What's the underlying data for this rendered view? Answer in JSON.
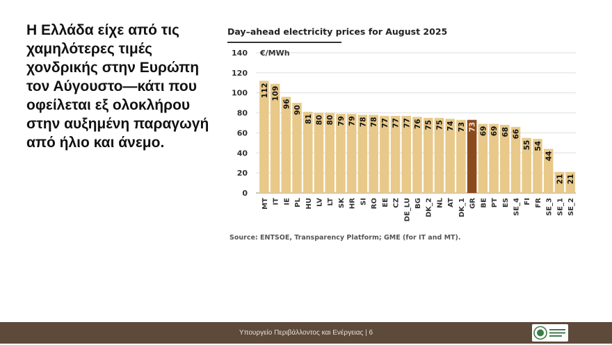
{
  "slide": {
    "headline": "Η Ελλάδα είχε από τις χαμηλότερες τιμές χονδρικής στην Ευρώπη τον Αύγουστο—κάτι που οφείλεται εξ ολοκλήρου στην αυξημένη παραγωγή από ήλιο και άνεμο.",
    "source": "Source: ENTSOE, Transparency Platform; GME (for IT and MT).",
    "footer": "Υπουργείο Περιβάλλοντος και Ενέργειας | 6"
  },
  "colors": {
    "bar": "#e8c98a",
    "highlight": "#8b4a1c",
    "grid": "#dedede",
    "footer_bg": "#5d4a3a",
    "logo_green": "#3f7a4a"
  },
  "chart_data": {
    "type": "bar",
    "title": "Day–ahead electricity prices for August 2025",
    "ylabel": "€/MWh",
    "xlabel": "",
    "ylim": [
      0,
      140
    ],
    "yticks": [
      0,
      20,
      40,
      60,
      80,
      100,
      120,
      140
    ],
    "grid": true,
    "highlight": "GR",
    "categories": [
      "MT",
      "IT",
      "IE",
      "PL",
      "HU",
      "LV",
      "LT",
      "SK",
      "HR",
      "SI",
      "RO",
      "EE",
      "CZ",
      "DE_LU",
      "BG",
      "DK_2",
      "NL",
      "AT",
      "DK_1",
      "GR",
      "BE",
      "PT",
      "ES",
      "SE_4",
      "FI",
      "FR",
      "SE_3",
      "SE_1",
      "SE_2"
    ],
    "values": [
      112,
      109,
      96,
      90,
      81,
      80,
      80,
      79,
      79,
      78,
      78,
      77,
      77,
      77,
      76,
      75,
      75,
      74,
      73,
      73,
      69,
      69,
      68,
      66,
      55,
      54,
      44,
      21,
      21
    ]
  }
}
